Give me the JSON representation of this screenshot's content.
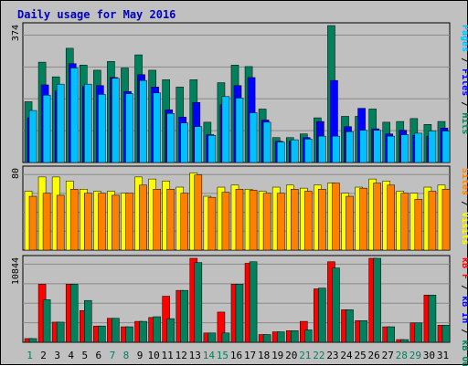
{
  "chart_data": {
    "type": "bar",
    "title": "Daily usage for May 2016",
    "categories": [
      "1",
      "2",
      "3",
      "4",
      "5",
      "6",
      "7",
      "8",
      "9",
      "10",
      "11",
      "12",
      "13",
      "14",
      "15",
      "16",
      "17",
      "18",
      "19",
      "20",
      "21",
      "22",
      "23",
      "24",
      "25",
      "26",
      "27",
      "28",
      "29",
      "30",
      "31"
    ],
    "weekend_categories": [
      "1",
      "7",
      "8",
      "14",
      "15",
      "21",
      "22",
      "28",
      "29"
    ],
    "panels": [
      {
        "id": "hits",
        "max_label": "374",
        "ylim": [
          0,
          374
        ],
        "side_labels": [
          "Pages",
          "Files",
          "Hits"
        ],
        "series": [
          {
            "name": "Hits",
            "color": "#00805c",
            "values": [
              166,
              274,
              234,
              312,
              266,
              252,
              276,
              258,
              294,
              252,
              226,
              206,
              226,
              110,
              218,
              266,
              262,
              146,
              68,
              68,
              78,
              122,
              374,
              126,
              126,
              146,
              110,
              112,
              120,
              104,
              112
            ]
          },
          {
            "name": "Files",
            "color": "#0000ff",
            "values": [
              122,
              212,
              196,
              270,
              208,
              210,
              232,
              194,
              240,
              206,
              144,
              124,
              164,
              76,
              158,
              210,
              232,
              116,
              58,
              58,
              68,
              112,
              224,
              98,
              148,
              92,
              78,
              88,
              74,
              72,
              94
            ]
          },
          {
            "name": "Pages",
            "color": "#00c0ff",
            "values": [
              142,
              184,
              214,
              258,
              214,
              186,
              230,
              188,
              224,
              190,
              134,
              108,
              98,
              74,
              180,
              176,
              136,
              110,
              56,
              62,
              64,
              72,
              72,
              84,
              88,
              88,
              72,
              76,
              80,
              86,
              86
            ]
          }
        ]
      },
      {
        "id": "sites",
        "max_label": "80",
        "ylim": [
          0,
          80
        ],
        "side_labels": [
          "Sites",
          "Visits"
        ],
        "series": [
          {
            "name": "Visits",
            "color": "#ffff00",
            "values": [
              58,
              72,
              72,
              68,
              60,
              58,
              58,
              56,
              72,
              70,
              68,
              62,
              76,
              53,
              62,
              64,
              60,
              58,
              62,
              64,
              61,
              64,
              66,
              56,
              62,
              70,
              68,
              58,
              56,
              62,
              64
            ]
          },
          {
            "name": "Sites",
            "color": "#ff8000",
            "values": [
              53,
              56,
              54,
              60,
              56,
              56,
              54,
              56,
              64,
              60,
              60,
              56,
              74,
              52,
              57,
              60,
              59,
              56,
              56,
              60,
              58,
              60,
              66,
              53,
              61,
              66,
              64,
              56,
              50,
              58,
              60
            ]
          }
        ]
      },
      {
        "id": "kbytes",
        "max_label": "10844",
        "ylim": [
          0,
          10844
        ],
        "side_labels": [
          "kB F",
          "kB In",
          "kB Out"
        ],
        "series": [
          {
            "name": "kB F",
            "color": "#ff0000",
            "values": [
              480,
              7500,
              2600,
              7500,
              4100,
              2100,
              3100,
              2000,
              2700,
              3200,
              5950,
              6700,
              10844,
              1200,
              3900,
              7500,
              10200,
              1000,
              1350,
              1500,
              2700,
              6900,
              10400,
              4200,
              2800,
              10844,
              2000,
              350,
              2500,
              6100,
              2200
            ]
          },
          {
            "name": "kB In",
            "color": "#0000ff",
            "values": [
              0,
              0,
              0,
              0,
              0,
              0,
              0,
              0,
              0,
              0,
              0,
              0,
              0,
              0,
              0,
              0,
              0,
              0,
              0,
              0,
              0,
              0,
              0,
              0,
              0,
              0,
              0,
              0,
              0,
              0,
              0
            ]
          },
          {
            "name": "kB Out",
            "color": "#00805c",
            "values": [
              480,
              5500,
              2600,
              7500,
              5400,
              2100,
              3100,
              2000,
              2700,
              3300,
              3050,
              6700,
              10300,
              1200,
              1200,
              7500,
              10400,
              1000,
              1350,
              1500,
              1600,
              7000,
              9600,
              4200,
              2800,
              10844,
              2000,
              350,
              2500,
              6100,
              2200
            ]
          }
        ]
      }
    ]
  }
}
